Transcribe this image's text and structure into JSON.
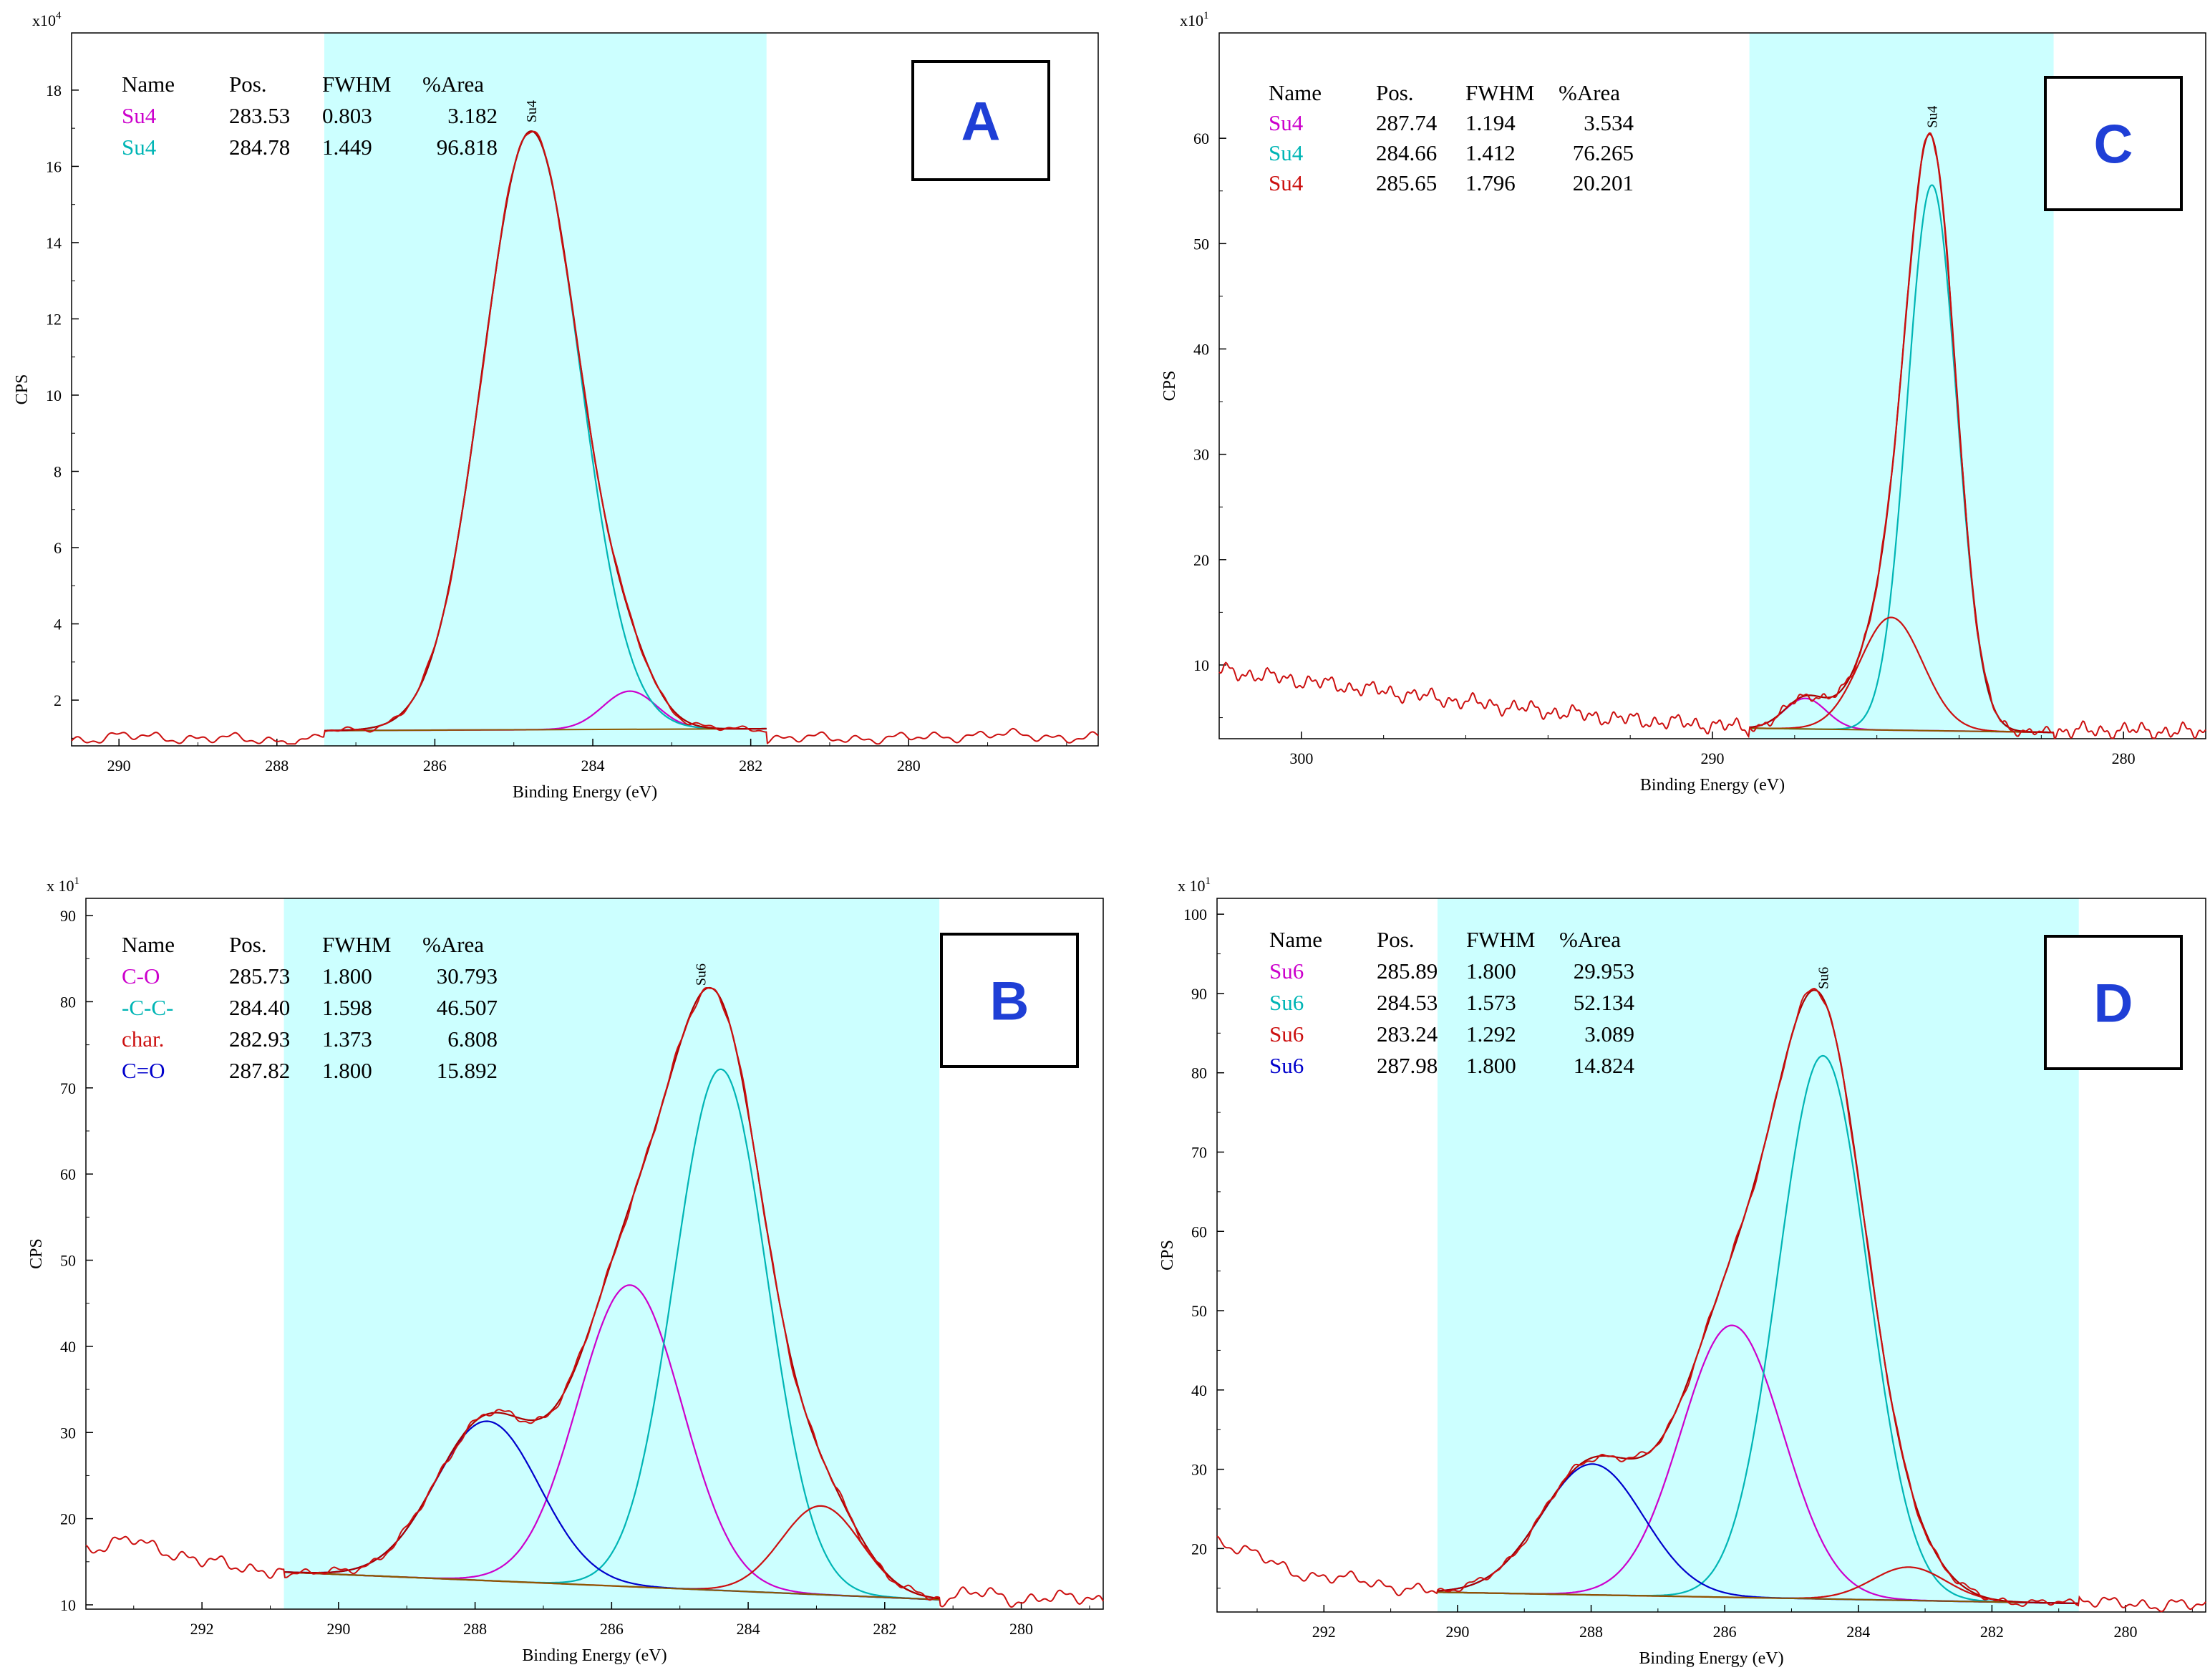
{
  "colors": {
    "highlight": "#ccffff",
    "envelope": "#aa0000",
    "background_line": "#8b5a00",
    "magenta": "#cc00cc",
    "cyan": "#00b5b5",
    "red": "#cc1010",
    "blue": "#0000cc",
    "letter": "#1f3fd6"
  },
  "chart_data": [
    {
      "panel": "A",
      "type": "line",
      "letter": "A",
      "xlabel": "Binding Energy (eV)",
      "ylabel": "CPS",
      "y_exponent_base": "x10",
      "y_exponent_power": "4",
      "xlim": [
        290.6,
        277.6
      ],
      "ylim": [
        0.8,
        19.5
      ],
      "x_ticks": [
        290,
        288,
        286,
        284,
        282,
        280
      ],
      "y_ticks": [
        2,
        4,
        6,
        8,
        10,
        12,
        14,
        16,
        18
      ],
      "highlight_region": [
        287.4,
        281.8
      ],
      "peak_label": "Su4",
      "peak_label_x": 284.78,
      "table": {
        "headers": [
          "Name",
          "Pos.",
          "FWHM",
          "%Area"
        ],
        "rows": [
          {
            "name": "Su4",
            "color": "magenta",
            "pos": "283.53",
            "fwhm": "0.803",
            "area": "3.182"
          },
          {
            "name": "Su4",
            "color": "cyan",
            "pos": "284.78",
            "fwhm": "1.449",
            "area": "96.818"
          }
        ]
      },
      "baseline": {
        "x1": 287.4,
        "y1": 1.2,
        "x2": 281.8,
        "y2": 1.25
      },
      "components": [
        {
          "color": "magenta",
          "center": 283.53,
          "fwhm": 0.803,
          "height": 1.0
        },
        {
          "color": "cyan",
          "center": 284.78,
          "fwhm": 1.449,
          "height": 15.7
        }
      ],
      "noise_amp": 0.15,
      "envelope_points": [
        [
          290.6,
          0.95
        ],
        [
          290.0,
          1.05
        ],
        [
          289.0,
          1.0
        ],
        [
          288.0,
          0.95
        ],
        [
          287.5,
          0.95
        ],
        [
          287.3,
          1.2
        ],
        [
          282.0,
          1.25
        ],
        [
          281.8,
          1.0
        ],
        [
          280.0,
          1.0
        ],
        [
          279.0,
          1.1
        ],
        [
          277.6,
          1.0
        ]
      ]
    },
    {
      "panel": "C",
      "type": "line",
      "letter": "C",
      "xlabel": "Binding Energy (eV)",
      "ylabel": "CPS",
      "y_exponent_base": "x10",
      "y_exponent_power": "1",
      "xlim": [
        302.0,
        278.0
      ],
      "ylim": [
        3,
        70
      ],
      "x_ticks": [
        300,
        290,
        280
      ],
      "y_ticks": [
        10,
        20,
        30,
        40,
        50,
        60
      ],
      "highlight_region": [
        289.1,
        281.7
      ],
      "peak_label": "Su4",
      "peak_label_x": 284.66,
      "table": {
        "headers": [
          "Name",
          "Pos.",
          "FWHM",
          "%Area"
        ],
        "rows": [
          {
            "name": "Su4",
            "color": "magenta",
            "pos": "287.74",
            "fwhm": "1.194",
            "area": "3.534"
          },
          {
            "name": "Su4",
            "color": "cyan",
            "pos": "284.66",
            "fwhm": "1.412",
            "area": "76.265"
          },
          {
            "name": "Su4",
            "color": "red",
            "pos": "285.65",
            "fwhm": "1.796",
            "area": "20.201"
          }
        ]
      },
      "baseline": {
        "x1": 289.1,
        "y1": 4.0,
        "x2": 281.7,
        "y2": 3.6
      },
      "components": [
        {
          "color": "magenta",
          "center": 287.74,
          "fwhm": 1.194,
          "height": 2.9
        },
        {
          "color": "cyan",
          "center": 284.66,
          "fwhm": 1.412,
          "height": 51.8
        },
        {
          "color": "red",
          "center": 285.65,
          "fwhm": 1.796,
          "height": 10.7
        }
      ],
      "noise_amp": 0.8,
      "envelope_points": [
        [
          302.0,
          9.5
        ],
        [
          300.0,
          8.5
        ],
        [
          298.0,
          7.5
        ],
        [
          296.0,
          6.5
        ],
        [
          294.0,
          5.6
        ],
        [
          292.0,
          4.8
        ],
        [
          290.0,
          4.3
        ],
        [
          289.1,
          4.0
        ],
        [
          281.7,
          3.7
        ],
        [
          280.0,
          3.8
        ],
        [
          278.0,
          3.6
        ]
      ]
    },
    {
      "panel": "B",
      "type": "line",
      "letter": "B",
      "xlabel": "Binding Energy (eV)",
      "ylabel": "CPS",
      "y_exponent_base": "x 10",
      "y_exponent_power": "1",
      "xlim": [
        293.7,
        278.8
      ],
      "ylim": [
        9.5,
        92
      ],
      "x_ticks": [
        292,
        290,
        288,
        286,
        284,
        282,
        280
      ],
      "y_ticks": [
        10,
        20,
        30,
        40,
        50,
        60,
        70,
        80,
        90
      ],
      "highlight_region": [
        290.8,
        281.2
      ],
      "peak_label": "Su6",
      "peak_label_x": 284.7,
      "table": {
        "headers": [
          "Name",
          "Pos.",
          "FWHM",
          "%Area"
        ],
        "rows": [
          {
            "name": "C-O",
            "color": "magenta",
            "pos": "285.73",
            "fwhm": "1.800",
            "area": "30.793"
          },
          {
            "name": "-C-C-",
            "color": "cyan",
            "pos": "284.40",
            "fwhm": "1.598",
            "area": "46.507"
          },
          {
            "name": "char.",
            "color": "red",
            "pos": "282.93",
            "fwhm": "1.373",
            "area": "6.808"
          },
          {
            "name": "C=O",
            "color": "blue",
            "pos": "287.82",
            "fwhm": "1.800",
            "area": "15.892"
          }
        ]
      },
      "baseline": {
        "x1": 290.8,
        "y1": 13.8,
        "x2": 281.2,
        "y2": 10.6
      },
      "components": [
        {
          "color": "magenta",
          "center": 285.73,
          "fwhm": 1.8,
          "height": 35.0
        },
        {
          "color": "cyan",
          "center": 284.4,
          "fwhm": 1.598,
          "height": 60.5
        },
        {
          "color": "red",
          "center": 282.93,
          "fwhm": 1.373,
          "height": 10.3
        },
        {
          "color": "blue",
          "center": 287.82,
          "fwhm": 1.8,
          "height": 18.5
        }
      ],
      "noise_amp": 0.9,
      "envelope_points": [
        [
          293.7,
          16.5
        ],
        [
          293.0,
          17.5
        ],
        [
          292.0,
          15.0
        ],
        [
          291.0,
          14.0
        ],
        [
          290.8,
          13.8
        ],
        [
          281.2,
          10.6
        ],
        [
          280.5,
          11.5
        ],
        [
          280.0,
          10.5
        ],
        [
          279.0,
          11.0
        ],
        [
          278.8,
          10.5
        ]
      ]
    },
    {
      "panel": "D",
      "type": "line",
      "letter": "D",
      "xlabel": "Binding Energy (eV)",
      "ylabel": "CPS",
      "y_exponent_base": "x 10",
      "y_exponent_power": "1",
      "xlim": [
        293.6,
        278.8
      ],
      "ylim": [
        12,
        102
      ],
      "x_ticks": [
        292,
        290,
        288,
        286,
        284,
        282,
        280
      ],
      "y_ticks": [
        20,
        30,
        40,
        50,
        60,
        70,
        80,
        90,
        100
      ],
      "highlight_region": [
        290.3,
        280.7
      ],
      "peak_label": "Su6",
      "peak_label_x": 284.53,
      "table": {
        "headers": [
          "Name",
          "Pos.",
          "FWHM",
          "%Area"
        ],
        "rows": [
          {
            "name": "Su6",
            "color": "magenta",
            "pos": "285.89",
            "fwhm": "1.800",
            "area": "29.953"
          },
          {
            "name": "Su6",
            "color": "cyan",
            "pos": "284.53",
            "fwhm": "1.573",
            "area": "52.134"
          },
          {
            "name": "Su6",
            "color": "red",
            "pos": "283.24",
            "fwhm": "1.292",
            "area": "3.089"
          },
          {
            "name": "Su6",
            "color": "blue",
            "pos": "287.98",
            "fwhm": "1.800",
            "area": "14.824"
          }
        ]
      },
      "baseline": {
        "x1": 290.3,
        "y1": 14.5,
        "x2": 281.5,
        "y2": 13.2
      },
      "components": [
        {
          "color": "magenta",
          "center": 285.89,
          "fwhm": 1.8,
          "height": 34.3
        },
        {
          "color": "cyan",
          "center": 284.53,
          "fwhm": 1.573,
          "height": 68.5
        },
        {
          "color": "red",
          "center": 283.24,
          "fwhm": 1.292,
          "height": 4.2
        },
        {
          "color": "blue",
          "center": 287.98,
          "fwhm": 1.8,
          "height": 16.5
        }
      ],
      "noise_amp": 0.9,
      "envelope_points": [
        [
          293.6,
          21.0
        ],
        [
          293.2,
          20.0
        ],
        [
          292.5,
          17.0
        ],
        [
          291.5,
          16.0
        ],
        [
          290.8,
          15.0
        ],
        [
          290.3,
          14.5
        ],
        [
          281.5,
          13.2
        ],
        [
          281.0,
          13.8
        ],
        [
          280.5,
          13.0
        ],
        [
          280.0,
          13.5
        ],
        [
          279.5,
          12.5
        ],
        [
          278.8,
          13.2
        ]
      ]
    }
  ]
}
